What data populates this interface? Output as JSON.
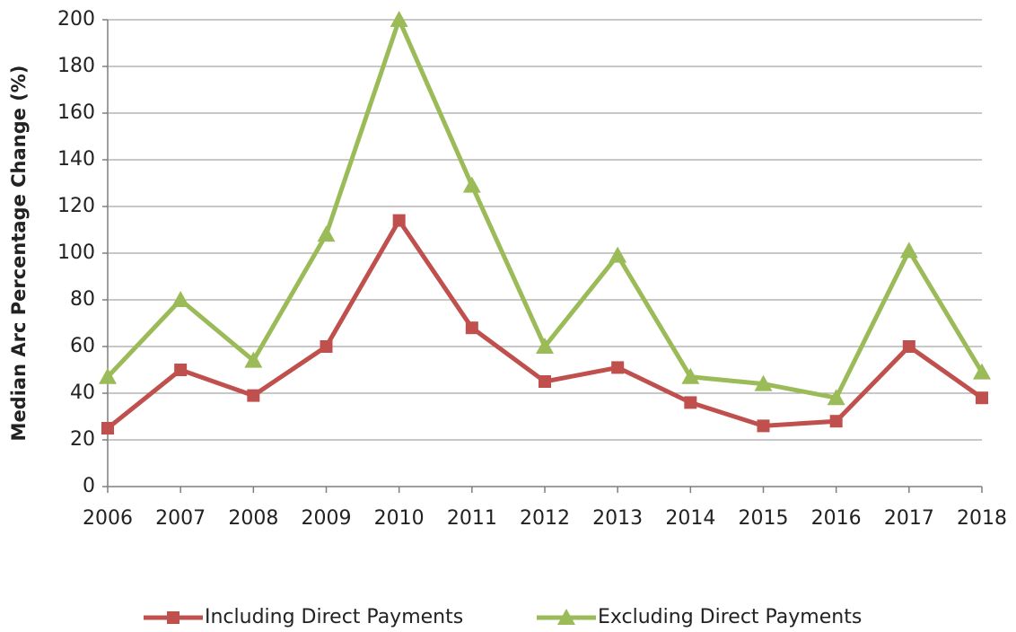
{
  "chart_data": {
    "type": "line",
    "y_label": "Median Arc Percentage Change (%)",
    "categories": [
      "2006",
      "2007",
      "2008",
      "2009",
      "2010",
      "2011",
      "2012",
      "2013",
      "2014",
      "2015",
      "2016",
      "2017",
      "2018"
    ],
    "series": [
      {
        "name": "Including Direct Payments",
        "color": "#c0504d",
        "marker": "square",
        "values": [
          25,
          50,
          39,
          60,
          114,
          68,
          45,
          51,
          36,
          26,
          28,
          60,
          38
        ]
      },
      {
        "name": "Excluding Direct Payments",
        "color": "#9bbb59",
        "marker": "triangle",
        "values": [
          47,
          80,
          54,
          108,
          200,
          129,
          60,
          99,
          47,
          44,
          38,
          101,
          49
        ]
      }
    ],
    "ylim": [
      0,
      200
    ],
    "yticks": [
      0,
      20,
      40,
      60,
      80,
      100,
      120,
      140,
      160,
      180,
      200
    ],
    "grid": true,
    "legend": "bottom"
  }
}
